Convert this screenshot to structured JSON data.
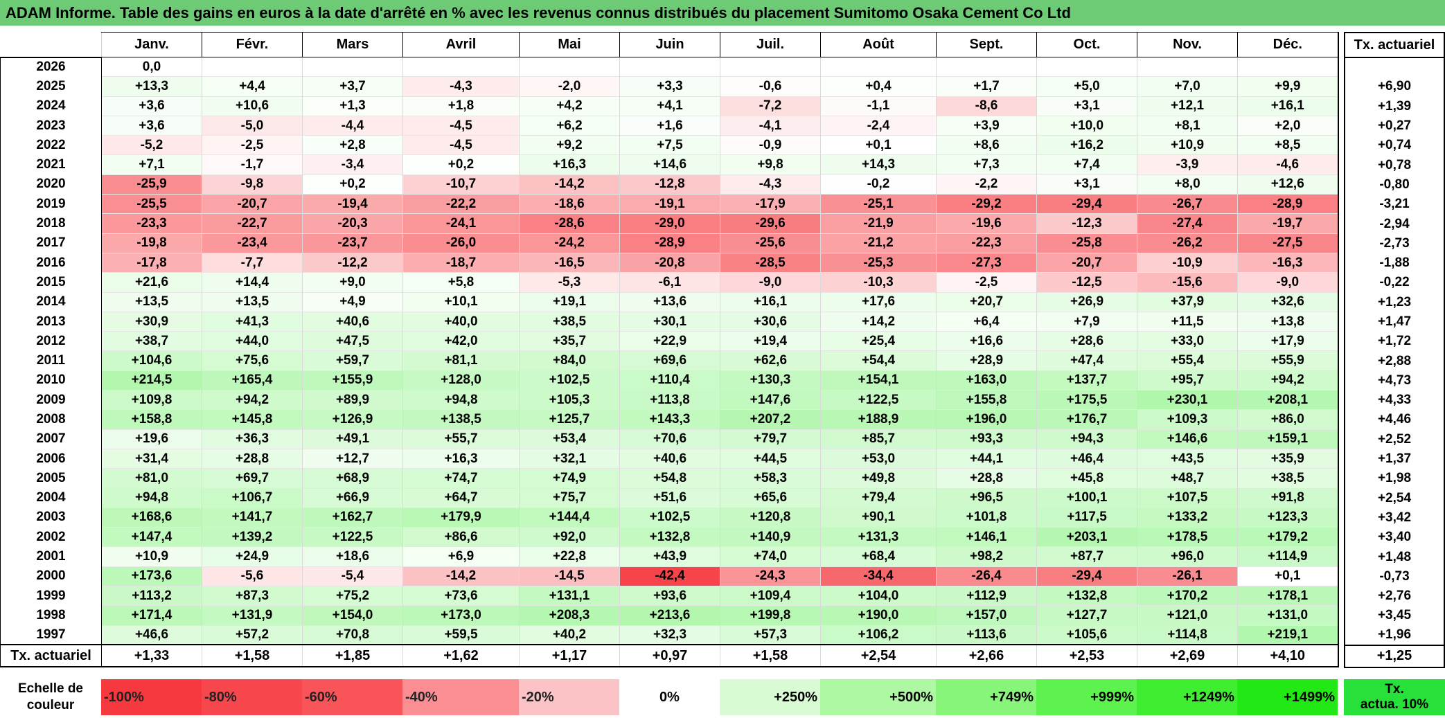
{
  "title": "ADAM Informe. Table des gains en euros à la date d'arrêté en % avec les revenus connus distribués du placement Sumitomo Osaka Cement Co Ltd",
  "months": [
    "Janv.",
    "Févr.",
    "Mars",
    "Avril",
    "Mai",
    "Juin",
    "Juil.",
    "Août",
    "Sept.",
    "Oct.",
    "Nov.",
    "Déc."
  ],
  "rate_header": "Tx. actuariel",
  "rows": [
    {
      "year": "2026",
      "values": [
        "0,0",
        "",
        "",
        "",
        "",
        "",
        "",
        "",
        "",
        "",
        "",
        ""
      ],
      "rate": ""
    },
    {
      "year": "2025",
      "values": [
        "+13,3",
        "+4,4",
        "+3,7",
        "-4,3",
        "-2,0",
        "+3,3",
        "-0,6",
        "+0,4",
        "+1,7",
        "+5,0",
        "+7,0",
        "+9,9"
      ],
      "rate": "+6,90"
    },
    {
      "year": "2024",
      "values": [
        "+3,6",
        "+10,6",
        "+1,3",
        "+1,8",
        "+4,2",
        "+4,1",
        "-7,2",
        "-1,1",
        "-8,6",
        "+3,1",
        "+12,1",
        "+16,1"
      ],
      "rate": "+1,39"
    },
    {
      "year": "2023",
      "values": [
        "+3,6",
        "-5,0",
        "-4,4",
        "-4,5",
        "+6,2",
        "+1,6",
        "-4,1",
        "-2,4",
        "+3,9",
        "+10,0",
        "+8,1",
        "+2,0"
      ],
      "rate": "+0,27"
    },
    {
      "year": "2022",
      "values": [
        "-5,2",
        "-2,5",
        "+2,8",
        "-4,5",
        "+9,2",
        "+7,5",
        "-0,9",
        "+0,1",
        "+8,6",
        "+16,2",
        "+10,9",
        "+8,5"
      ],
      "rate": "+0,74"
    },
    {
      "year": "2021",
      "values": [
        "+7,1",
        "-1,7",
        "-3,4",
        "+0,2",
        "+16,3",
        "+14,6",
        "+9,8",
        "+14,3",
        "+7,3",
        "+7,4",
        "-3,9",
        "-4,6"
      ],
      "rate": "+0,78"
    },
    {
      "year": "2020",
      "values": [
        "-25,9",
        "-9,8",
        "+0,2",
        "-10,7",
        "-14,2",
        "-12,8",
        "-4,3",
        "-0,2",
        "-2,2",
        "+3,1",
        "+8,0",
        "+12,6"
      ],
      "rate": "-0,80"
    },
    {
      "year": "2019",
      "values": [
        "-25,5",
        "-20,7",
        "-19,4",
        "-22,2",
        "-18,6",
        "-19,1",
        "-17,9",
        "-25,1",
        "-29,2",
        "-29,4",
        "-26,7",
        "-28,9"
      ],
      "rate": "-3,21"
    },
    {
      "year": "2018",
      "values": [
        "-23,3",
        "-22,7",
        "-20,3",
        "-24,1",
        "-28,6",
        "-29,0",
        "-29,6",
        "-21,9",
        "-19,6",
        "-12,3",
        "-27,4",
        "-19,7"
      ],
      "rate": "-2,94"
    },
    {
      "year": "2017",
      "values": [
        "-19,8",
        "-23,4",
        "-23,7",
        "-26,0",
        "-24,2",
        "-28,9",
        "-25,6",
        "-21,2",
        "-22,3",
        "-25,8",
        "-26,2",
        "-27,5"
      ],
      "rate": "-2,73"
    },
    {
      "year": "2016",
      "values": [
        "-17,8",
        "-7,7",
        "-12,2",
        "-18,7",
        "-16,5",
        "-20,8",
        "-28,5",
        "-25,3",
        "-27,3",
        "-20,7",
        "-10,9",
        "-16,3"
      ],
      "rate": "-1,88"
    },
    {
      "year": "2015",
      "values": [
        "+21,6",
        "+14,4",
        "+9,0",
        "+5,8",
        "-5,3",
        "-6,1",
        "-9,0",
        "-10,3",
        "-2,5",
        "-12,5",
        "-15,6",
        "-9,0"
      ],
      "rate": "-0,22"
    },
    {
      "year": "2014",
      "values": [
        "+13,5",
        "+13,5",
        "+4,9",
        "+10,1",
        "+19,1",
        "+13,6",
        "+16,1",
        "+17,6",
        "+20,7",
        "+26,9",
        "+37,9",
        "+32,6"
      ],
      "rate": "+1,23"
    },
    {
      "year": "2013",
      "values": [
        "+30,9",
        "+41,3",
        "+40,6",
        "+40,0",
        "+38,5",
        "+30,1",
        "+30,6",
        "+14,2",
        "+6,4",
        "+7,9",
        "+11,5",
        "+13,8"
      ],
      "rate": "+1,47"
    },
    {
      "year": "2012",
      "values": [
        "+38,7",
        "+44,0",
        "+47,5",
        "+42,0",
        "+35,7",
        "+22,9",
        "+19,4",
        "+25,4",
        "+16,6",
        "+28,6",
        "+33,0",
        "+17,9"
      ],
      "rate": "+1,72"
    },
    {
      "year": "2011",
      "values": [
        "+104,6",
        "+75,6",
        "+59,7",
        "+81,1",
        "+84,0",
        "+69,6",
        "+62,6",
        "+54,4",
        "+28,9",
        "+47,4",
        "+55,4",
        "+55,9"
      ],
      "rate": "+2,88"
    },
    {
      "year": "2010",
      "values": [
        "+214,5",
        "+165,4",
        "+155,9",
        "+128,0",
        "+102,5",
        "+110,4",
        "+130,3",
        "+154,1",
        "+163,0",
        "+137,7",
        "+95,7",
        "+94,2"
      ],
      "rate": "+4,73"
    },
    {
      "year": "2009",
      "values": [
        "+109,8",
        "+94,2",
        "+89,9",
        "+94,8",
        "+105,3",
        "+113,8",
        "+147,6",
        "+122,5",
        "+155,8",
        "+175,5",
        "+230,1",
        "+208,1"
      ],
      "rate": "+4,33"
    },
    {
      "year": "2008",
      "values": [
        "+158,8",
        "+145,8",
        "+126,9",
        "+138,5",
        "+125,7",
        "+143,3",
        "+207,2",
        "+188,9",
        "+196,0",
        "+176,7",
        "+109,3",
        "+86,0"
      ],
      "rate": "+4,46"
    },
    {
      "year": "2007",
      "values": [
        "+19,6",
        "+36,3",
        "+49,1",
        "+55,7",
        "+53,4",
        "+70,6",
        "+79,7",
        "+85,7",
        "+93,3",
        "+94,3",
        "+146,6",
        "+159,1"
      ],
      "rate": "+2,52"
    },
    {
      "year": "2006",
      "values": [
        "+31,4",
        "+28,8",
        "+12,7",
        "+16,3",
        "+32,1",
        "+40,6",
        "+44,5",
        "+53,0",
        "+44,1",
        "+46,4",
        "+43,5",
        "+35,9"
      ],
      "rate": "+1,37"
    },
    {
      "year": "2005",
      "values": [
        "+81,0",
        "+69,7",
        "+68,9",
        "+74,7",
        "+74,9",
        "+54,8",
        "+58,3",
        "+49,8",
        "+28,8",
        "+45,8",
        "+48,7",
        "+38,5"
      ],
      "rate": "+1,98"
    },
    {
      "year": "2004",
      "values": [
        "+94,8",
        "+106,7",
        "+66,9",
        "+64,7",
        "+75,7",
        "+51,6",
        "+65,6",
        "+79,4",
        "+96,5",
        "+100,1",
        "+107,5",
        "+91,8"
      ],
      "rate": "+2,54"
    },
    {
      "year": "2003",
      "values": [
        "+168,6",
        "+141,7",
        "+162,7",
        "+179,9",
        "+144,4",
        "+102,5",
        "+120,8",
        "+90,1",
        "+101,8",
        "+117,5",
        "+133,2",
        "+123,3"
      ],
      "rate": "+3,42"
    },
    {
      "year": "2002",
      "values": [
        "+147,4",
        "+139,2",
        "+122,5",
        "+86,6",
        "+92,0",
        "+132,8",
        "+140,9",
        "+131,3",
        "+146,1",
        "+203,1",
        "+178,5",
        "+179,2"
      ],
      "rate": "+3,40"
    },
    {
      "year": "2001",
      "values": [
        "+10,9",
        "+24,9",
        "+18,6",
        "+6,9",
        "+22,8",
        "+43,9",
        "+74,0",
        "+68,4",
        "+98,2",
        "+87,7",
        "+96,0",
        "+114,9"
      ],
      "rate": "+1,48"
    },
    {
      "year": "2000",
      "values": [
        "+173,6",
        "-5,6",
        "-5,4",
        "-14,2",
        "-14,5",
        "-42,4",
        "-24,3",
        "-34,4",
        "-26,4",
        "-29,4",
        "-26,1",
        "+0,1"
      ],
      "rate": "-0,73"
    },
    {
      "year": "1999",
      "values": [
        "+113,2",
        "+87,3",
        "+75,2",
        "+73,6",
        "+131,1",
        "+93,6",
        "+109,4",
        "+104,0",
        "+112,9",
        "+132,8",
        "+170,2",
        "+178,1"
      ],
      "rate": "+2,76"
    },
    {
      "year": "1998",
      "values": [
        "+171,4",
        "+131,9",
        "+154,0",
        "+173,0",
        "+208,3",
        "+213,6",
        "+199,8",
        "+190,0",
        "+157,0",
        "+127,7",
        "+121,0",
        "+131,0"
      ],
      "rate": "+3,45"
    },
    {
      "year": "1997",
      "values": [
        "+46,6",
        "+57,2",
        "+70,8",
        "+59,5",
        "+40,2",
        "+32,3",
        "+57,3",
        "+106,2",
        "+113,6",
        "+105,6",
        "+114,8",
        "+219,1"
      ],
      "rate": "+1,96"
    }
  ],
  "footer": {
    "label": "Tx. actuariel",
    "values": [
      "+1,33",
      "+1,58",
      "+1,85",
      "+1,62",
      "+1,17",
      "+0,97",
      "+1,58",
      "+2,54",
      "+2,66",
      "+2,53",
      "+2,69",
      "+4,10"
    ],
    "rate": "+1,25"
  },
  "scale": {
    "label_line1": "Echelle de",
    "label_line2": "couleur",
    "items": [
      {
        "label": "-100%",
        "color": "#f5393f",
        "kind": "neg"
      },
      {
        "label": "-80%",
        "color": "#f7464c",
        "kind": "neg"
      },
      {
        "label": "-60%",
        "color": "#f8545a",
        "kind": "neg"
      },
      {
        "label": "-40%",
        "color": "#fb8e93",
        "kind": "neg"
      },
      {
        "label": "-20%",
        "color": "#fcc3c6",
        "kind": "neg"
      },
      {
        "label": "0%",
        "color": "#ffffff",
        "kind": "zero"
      },
      {
        "label": "+250%",
        "color": "#d9fbd3",
        "kind": "pos"
      },
      {
        "label": "+500%",
        "color": "#aef7a3",
        "kind": "pos"
      },
      {
        "label": "+749%",
        "color": "#86f57a",
        "kind": "pos"
      },
      {
        "label": "+999%",
        "color": "#5ef24f",
        "kind": "pos"
      },
      {
        "label": "+1249%",
        "color": "#3fee30",
        "kind": "pos"
      },
      {
        "label": "+1499%",
        "color": "#22e816",
        "kind": "pos"
      }
    ],
    "rate_line1": "Tx.",
    "rate_line2": "actua. 10%",
    "rate_color": "#27e03a"
  },
  "colors": {
    "title_bg": "#6ecb75",
    "negative_max": "#f5393f",
    "positive_max": "#22e816"
  }
}
